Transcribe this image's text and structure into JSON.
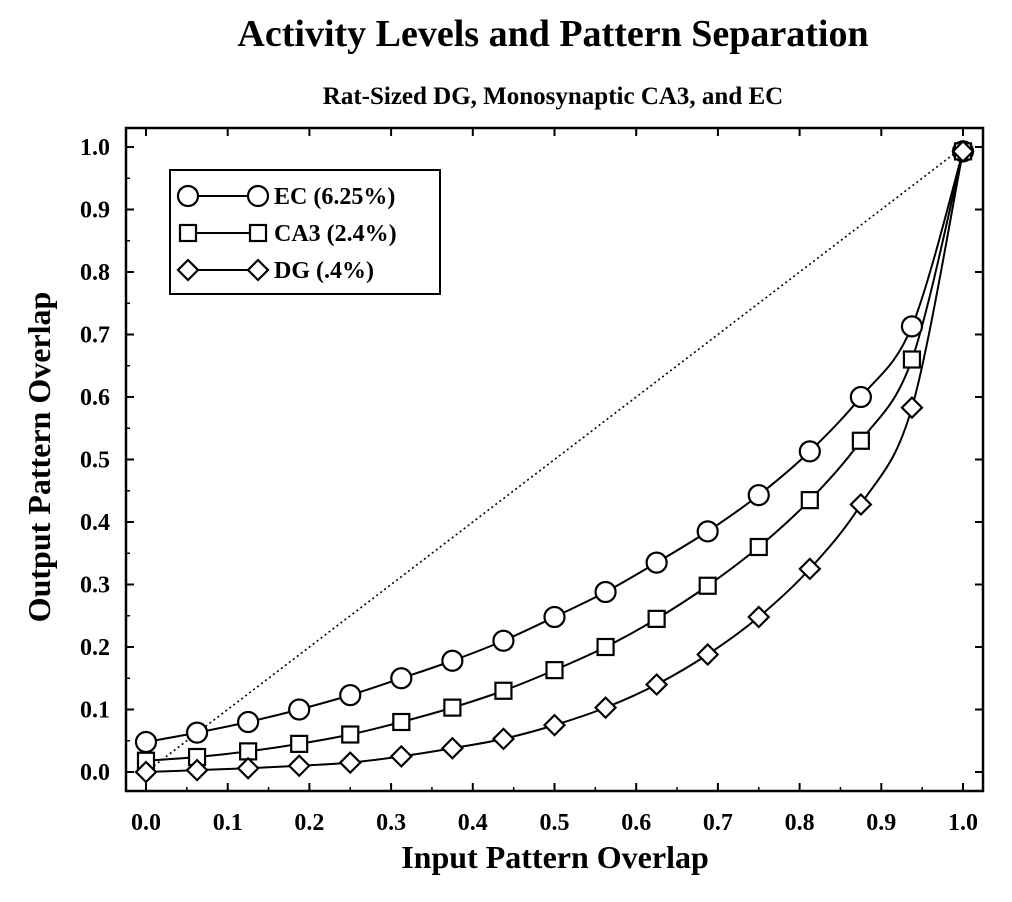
{
  "chart_data": {
    "type": "line",
    "title": "Activity Levels and Pattern Separation",
    "subtitle": "Rat-Sized DG, Monosynaptic CA3, and EC",
    "xlabel": "Input Pattern Overlap",
    "ylabel": "Output Pattern Overlap",
    "xlim": [
      0.0,
      1.0
    ],
    "ylim": [
      0.0,
      1.0
    ],
    "x_ticks": [
      "0.0",
      "0.1",
      "0.2",
      "0.3",
      "0.4",
      "0.5",
      "0.6",
      "0.7",
      "0.8",
      "0.9",
      "1.0"
    ],
    "y_ticks": [
      "0.0",
      "0.1",
      "0.2",
      "0.3",
      "0.4",
      "0.5",
      "0.6",
      "0.7",
      "0.8",
      "0.9",
      "1.0"
    ],
    "grid": false,
    "legend_position": "top-left",
    "x": [
      0.0,
      0.0625,
      0.125,
      0.1875,
      0.25,
      0.3125,
      0.375,
      0.4375,
      0.5,
      0.5625,
      0.625,
      0.6875,
      0.75,
      0.8125,
      0.875,
      0.9375,
      1.0
    ],
    "series": [
      {
        "name": "EC (6.25%)",
        "marker": "circle",
        "values": [
          0.048,
          0.063,
          0.08,
          0.1,
          0.123,
          0.15,
          0.178,
          0.21,
          0.248,
          0.288,
          0.335,
          0.385,
          0.443,
          0.513,
          0.6,
          0.713,
          0.993
        ]
      },
      {
        "name": "CA3 (2.4%)",
        "marker": "square",
        "values": [
          0.018,
          0.024,
          0.033,
          0.045,
          0.06,
          0.08,
          0.103,
          0.13,
          0.163,
          0.2,
          0.245,
          0.298,
          0.36,
          0.435,
          0.53,
          0.66,
          0.993
        ]
      },
      {
        "name": "DG (.4%)",
        "marker": "diamond",
        "values": [
          0.0,
          0.003,
          0.006,
          0.01,
          0.015,
          0.025,
          0.038,
          0.053,
          0.075,
          0.103,
          0.14,
          0.188,
          0.248,
          0.325,
          0.428,
          0.583,
          0.993
        ]
      }
    ],
    "reference_line": {
      "style": "dotted",
      "from": [
        0.0,
        0.0
      ],
      "to": [
        1.0,
        1.0
      ]
    }
  }
}
